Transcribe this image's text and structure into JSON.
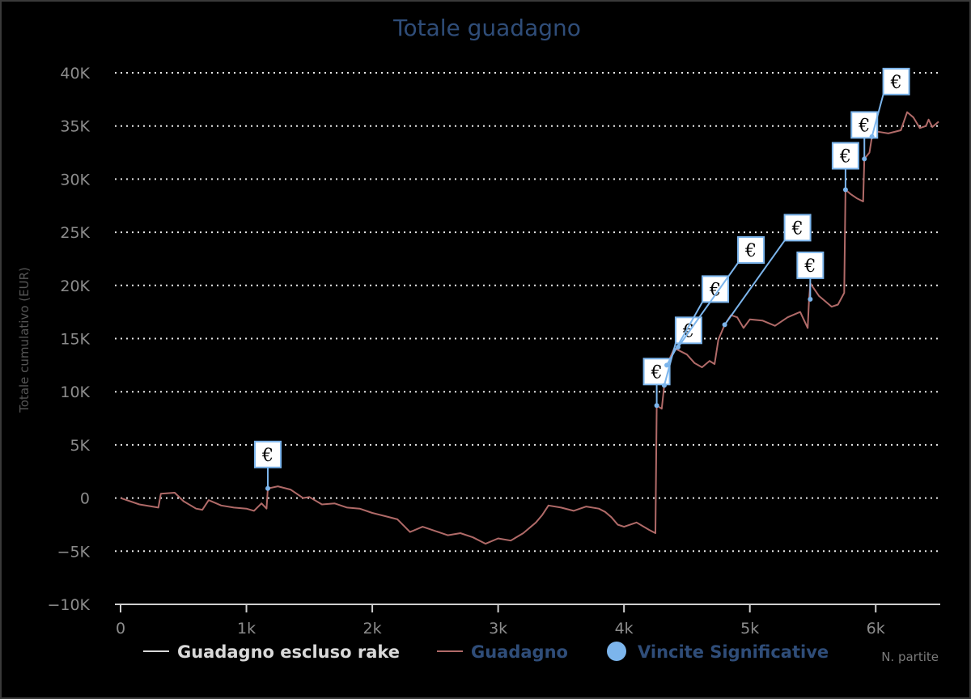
{
  "chart_data": {
    "type": "line",
    "title": "Totale guadagno",
    "xlabel": "N. partite",
    "ylabel": "Totale cumulativo (EUR)",
    "xlim": [
      0,
      6500
    ],
    "ylim": [
      -10000,
      40000
    ],
    "x_ticks": [
      {
        "value": 0,
        "label": "0"
      },
      {
        "value": 1000,
        "label": "1k"
      },
      {
        "value": 2000,
        "label": "2k"
      },
      {
        "value": 3000,
        "label": "3k"
      },
      {
        "value": 4000,
        "label": "4k"
      },
      {
        "value": 5000,
        "label": "5k"
      },
      {
        "value": 6000,
        "label": "6k"
      }
    ],
    "y_ticks": [
      {
        "value": 40000,
        "label": "40K"
      },
      {
        "value": 35000,
        "label": "35K"
      },
      {
        "value": 30000,
        "label": "30K"
      },
      {
        "value": 25000,
        "label": "25K"
      },
      {
        "value": 20000,
        "label": "20K"
      },
      {
        "value": 15000,
        "label": "15K"
      },
      {
        "value": 10000,
        "label": "10K"
      },
      {
        "value": 5000,
        "label": "5K"
      },
      {
        "value": 0,
        "label": "0"
      },
      {
        "value": -5000,
        "label": "−5K"
      },
      {
        "value": -10000,
        "label": "−10K"
      }
    ],
    "grid": true,
    "legend": [
      {
        "name": "Guadagno escluso rake",
        "color": "#d9d9d9",
        "symbol": "line"
      },
      {
        "name": "Guadagno",
        "color": "#2f4d79",
        "symbol": "line",
        "line_color": "#b06a68"
      },
      {
        "name": "Vincite Significative",
        "color": "#2f4d79",
        "symbol": "dot",
        "dot_color": "#7cb5ec"
      }
    ],
    "series": [
      {
        "name": "Guadagno",
        "color": "#b06a68",
        "points": [
          [
            0,
            0
          ],
          [
            150,
            -600
          ],
          [
            300,
            -900
          ],
          [
            320,
            400
          ],
          [
            430,
            500
          ],
          [
            500,
            -300
          ],
          [
            600,
            -1000
          ],
          [
            650,
            -1100
          ],
          [
            700,
            -200
          ],
          [
            800,
            -700
          ],
          [
            900,
            -900
          ],
          [
            1000,
            -1000
          ],
          [
            1060,
            -1200
          ],
          [
            1120,
            -500
          ],
          [
            1160,
            -1000
          ],
          [
            1170,
            900
          ],
          [
            1250,
            1100
          ],
          [
            1350,
            800
          ],
          [
            1450,
            0
          ],
          [
            1500,
            100
          ],
          [
            1600,
            -600
          ],
          [
            1700,
            -500
          ],
          [
            1800,
            -900
          ],
          [
            1900,
            -1000
          ],
          [
            2000,
            -1400
          ],
          [
            2100,
            -1700
          ],
          [
            2200,
            -2000
          ],
          [
            2300,
            -3200
          ],
          [
            2400,
            -2700
          ],
          [
            2500,
            -3100
          ],
          [
            2600,
            -3500
          ],
          [
            2700,
            -3300
          ],
          [
            2800,
            -3700
          ],
          [
            2900,
            -4300
          ],
          [
            3000,
            -3800
          ],
          [
            3100,
            -4000
          ],
          [
            3200,
            -3300
          ],
          [
            3300,
            -2300
          ],
          [
            3350,
            -1600
          ],
          [
            3400,
            -700
          ],
          [
            3500,
            -900
          ],
          [
            3600,
            -1200
          ],
          [
            3700,
            -800
          ],
          [
            3800,
            -1000
          ],
          [
            3850,
            -1300
          ],
          [
            3900,
            -1800
          ],
          [
            3950,
            -2500
          ],
          [
            4000,
            -2700
          ],
          [
            4100,
            -2300
          ],
          [
            4200,
            -3000
          ],
          [
            4250,
            -3300
          ],
          [
            4260,
            8700
          ],
          [
            4300,
            8400
          ],
          [
            4320,
            10600
          ],
          [
            4340,
            12500
          ],
          [
            4400,
            14100
          ],
          [
            4500,
            13500
          ],
          [
            4560,
            12700
          ],
          [
            4620,
            12300
          ],
          [
            4680,
            12900
          ],
          [
            4720,
            12600
          ],
          [
            4750,
            14900
          ],
          [
            4800,
            16300
          ],
          [
            4850,
            17200
          ],
          [
            4900,
            17000
          ],
          [
            4950,
            16000
          ],
          [
            5000,
            16800
          ],
          [
            5100,
            16700
          ],
          [
            5200,
            16200
          ],
          [
            5300,
            17000
          ],
          [
            5400,
            17500
          ],
          [
            5460,
            16000
          ],
          [
            5470,
            18600
          ],
          [
            5480,
            20200
          ],
          [
            5550,
            19000
          ],
          [
            5650,
            18000
          ],
          [
            5700,
            18200
          ],
          [
            5750,
            19300
          ],
          [
            5760,
            29000
          ],
          [
            5800,
            28600
          ],
          [
            5850,
            28200
          ],
          [
            5900,
            27900
          ],
          [
            5910,
            31900
          ],
          [
            5950,
            32500
          ],
          [
            5970,
            34000
          ],
          [
            6000,
            34500
          ],
          [
            6100,
            34300
          ],
          [
            6200,
            34600
          ],
          [
            6250,
            36300
          ],
          [
            6300,
            35800
          ],
          [
            6350,
            34800
          ],
          [
            6400,
            35000
          ],
          [
            6420,
            35600
          ],
          [
            6450,
            34900
          ],
          [
            6500,
            35400
          ]
        ]
      }
    ],
    "significant_wins": [
      {
        "x": 1170,
        "y": 900,
        "label": "€"
      },
      {
        "x": 4260,
        "y": 8700,
        "label": "€"
      },
      {
        "x": 4320,
        "y": 10600,
        "label": "€"
      },
      {
        "x": 4340,
        "y": 12500,
        "label": "€"
      },
      {
        "x": 4430,
        "y": 14200,
        "label": "€"
      },
      {
        "x": 4800,
        "y": 16300,
        "label": "€"
      },
      {
        "x": 5480,
        "y": 18700,
        "label": "€"
      },
      {
        "x": 5760,
        "y": 29000,
        "label": "€"
      },
      {
        "x": 5910,
        "y": 31900,
        "label": "€"
      },
      {
        "x": 5970,
        "y": 34000,
        "label": "€"
      }
    ]
  }
}
